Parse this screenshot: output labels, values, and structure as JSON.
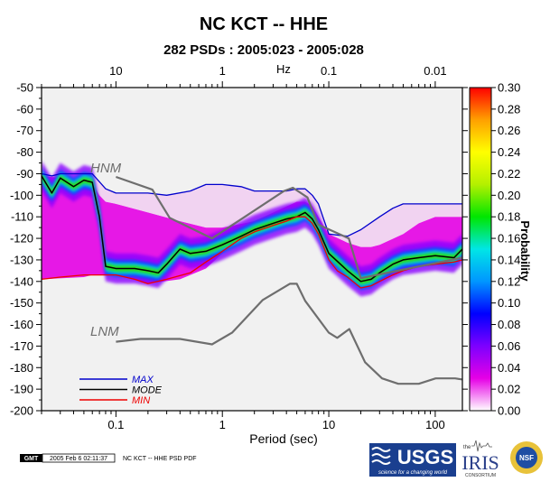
{
  "chart_data": {
    "type": "heatmap",
    "title": "NC KCT -- HHE",
    "subtitle": "282 PSDs : 2005:023 - 2005:028",
    "xlabel": "Period (sec)",
    "top_axis_label": "Hz",
    "x_scale": "log",
    "xlim": [
      0.02,
      180
    ],
    "ylim": [
      -200,
      -50
    ],
    "x_ticks": [
      0.1,
      1,
      10,
      100
    ],
    "x_tick_labels": [
      "0.1",
      "1",
      "10",
      "100"
    ],
    "top_ticks_hz": [
      10,
      1,
      0.1,
      0.01
    ],
    "top_tick_labels": [
      "10",
      "1",
      "0.1",
      "0.01"
    ],
    "y_ticks": [
      -50,
      -60,
      -70,
      -80,
      -90,
      -100,
      -110,
      -120,
      -130,
      -140,
      -150,
      -160,
      -170,
      -180,
      -190,
      -200
    ],
    "y_tick_labels": [
      "-50",
      "-60",
      "-70",
      "-80",
      "-90",
      "-100",
      "-110",
      "-120",
      "-130",
      "-140",
      "-150",
      "-160",
      "-170",
      "-180",
      "-190",
      "-200"
    ],
    "grid": false,
    "colorbar": {
      "label": "Probability",
      "min": 0.0,
      "max": 0.3,
      "ticks": [
        "0.00",
        "0.02",
        "0.04",
        "0.06",
        "0.08",
        "0.10",
        "0.12",
        "0.14",
        "0.16",
        "0.18",
        "0.20",
        "0.22",
        "0.24",
        "0.26",
        "0.28",
        "0.30"
      ],
      "colors": [
        "#ffffff",
        "#e600e6",
        "#7d00ff",
        "#0000ff",
        "#0096ff",
        "#00e6e6",
        "#00e600",
        "#b4f000",
        "#ffff00",
        "#ffa000",
        "#ff0000"
      ]
    },
    "legend_position": "bottom-left",
    "series": [
      {
        "name": "MAX",
        "color": "#0000cc",
        "x": [
          0.02,
          0.025,
          0.03,
          0.04,
          0.05,
          0.06,
          0.08,
          0.1,
          0.15,
          0.2,
          0.3,
          0.5,
          0.7,
          1,
          1.5,
          2,
          3,
          4,
          5,
          6,
          7,
          8,
          10,
          15,
          20,
          30,
          40,
          50,
          70,
          100,
          150,
          180
        ],
        "y": [
          -90,
          -91,
          -90,
          -90,
          -90,
          -90,
          -97,
          -99,
          -99,
          -99,
          -100,
          -98,
          -95,
          -95,
          -96,
          -98,
          -98,
          -98,
          -97,
          -97,
          -100,
          -104,
          -118,
          -119,
          -116,
          -110,
          -106,
          -104,
          -104,
          -104,
          -104,
          -104
        ]
      },
      {
        "name": "MODE",
        "color": "#000000",
        "x": [
          0.02,
          0.025,
          0.03,
          0.04,
          0.05,
          0.06,
          0.07,
          0.08,
          0.1,
          0.15,
          0.2,
          0.25,
          0.3,
          0.4,
          0.5,
          0.7,
          1,
          1.5,
          2,
          3,
          4,
          5,
          6,
          7,
          8,
          10,
          15,
          20,
          25,
          30,
          40,
          50,
          70,
          100,
          150,
          180
        ],
        "y": [
          -91,
          -99,
          -92,
          -96,
          -93,
          -94,
          -110,
          -133,
          -134,
          -134,
          -135,
          -136,
          -132,
          -125,
          -127,
          -126,
          -123,
          -119,
          -116,
          -113,
          -111,
          -110,
          -108,
          -111,
          -116,
          -127,
          -135,
          -140,
          -139,
          -136,
          -132,
          -130,
          -129,
          -128,
          -129,
          -125
        ]
      },
      {
        "name": "MIN",
        "color": "#ee0000",
        "x": [
          0.02,
          0.03,
          0.05,
          0.08,
          0.1,
          0.15,
          0.2,
          0.3,
          0.5,
          0.7,
          1,
          1.5,
          2,
          3,
          4,
          5,
          6,
          7,
          8,
          10,
          12,
          15,
          20,
          25,
          30,
          40,
          50,
          70,
          100,
          150,
          180
        ],
        "y": [
          -139,
          -138,
          -137,
          -137,
          -137,
          -139,
          -141,
          -139,
          -136,
          -131,
          -126,
          -120,
          -117,
          -114,
          -112,
          -110,
          -110,
          -113,
          -118,
          -130,
          -135,
          -138,
          -143,
          -142,
          -140,
          -137,
          -135,
          -133,
          -132,
          -131,
          -130
        ]
      },
      {
        "name": "NHNM",
        "color": "#6e6e6e",
        "x": [
          0.1,
          0.22,
          0.32,
          0.8,
          3.8,
          4.6,
          6.3,
          7.9,
          15.4,
          20,
          354.8
        ],
        "y": [
          -91.5,
          -97.4,
          -110.5,
          -120.0,
          -98.0,
          -96.5,
          -101.0,
          -113.5,
          -120.0,
          -138.5,
          -126.0
        ]
      },
      {
        "name": "NLNM",
        "color": "#6e6e6e",
        "x": [
          0.1,
          0.17,
          0.4,
          0.8,
          1.24,
          2.4,
          4.3,
          5.0,
          6.0,
          10.0,
          12.0,
          15.6,
          21.9,
          31.6,
          45.0,
          70.0,
          101.0,
          154.0,
          328.0
        ],
        "y": [
          -168.0,
          -166.7,
          -166.7,
          -169.2,
          -163.7,
          -148.6,
          -141.1,
          -141.1,
          -149.0,
          -163.8,
          -166.2,
          -162.1,
          -177.5,
          -185.0,
          -187.5,
          -187.5,
          -185.0,
          -185.0,
          -187.5
        ]
      }
    ],
    "density_band": {
      "x": [
        0.02,
        0.05,
        0.06,
        0.07,
        0.08,
        0.1,
        0.2,
        0.4,
        0.7,
        1,
        2,
        3,
        5,
        6,
        7,
        8,
        10,
        15,
        20,
        25,
        30,
        50,
        70,
        100,
        180
      ],
      "upper": [
        -91,
        -93,
        -94,
        -100,
        -103,
        -104,
        -108,
        -112,
        -115,
        -115,
        -112,
        -108,
        -103,
        -103,
        -105,
        -110,
        -118,
        -122,
        -124,
        -124,
        -123,
        -118,
        -113,
        -110,
        -110
      ],
      "lower": [
        -139,
        -138,
        -137,
        -137,
        -137,
        -137,
        -141,
        -139,
        -134,
        -127,
        -117,
        -114,
        -110,
        -110,
        -113,
        -118,
        -130,
        -138,
        -143,
        -142,
        -140,
        -135,
        -133,
        -132,
        -130
      ]
    }
  },
  "legend": [
    {
      "label": "MAX",
      "color": "#0000cc",
      "text_color": "#0000cc"
    },
    {
      "label": "MODE",
      "color": "#000000",
      "text_color": "#000000"
    },
    {
      "label": "MIN",
      "color": "#ee0000",
      "text_color": "#ee0000"
    }
  ],
  "model_labels": {
    "high": "HNM",
    "low": "LNM"
  },
  "footer": {
    "gmt_badge": "GMT",
    "timestamp": "2005 Feb  6 02:11:37",
    "caption": "NC KCT -- HHE PSD PDF"
  },
  "logos": {
    "usgs": "USGS",
    "usgs_tagline": "science for a changing world",
    "iris_prefix": "the",
    "iris": "IRIS",
    "iris_sub": "CONSORTIUM",
    "nsf": "NSF"
  }
}
